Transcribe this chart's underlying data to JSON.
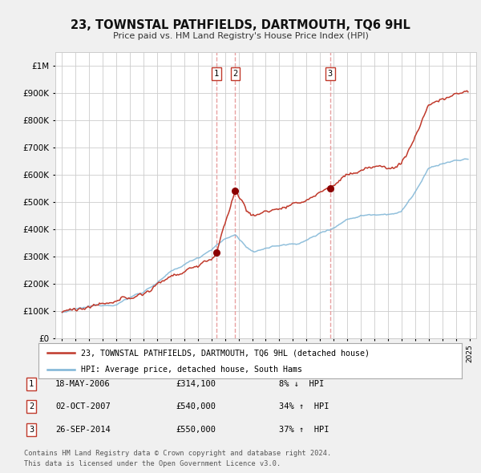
{
  "title": "23, TOWNSTAL PATHFIELDS, DARTMOUTH, TQ6 9HL",
  "subtitle": "Price paid vs. HM Land Registry's House Price Index (HPI)",
  "legend_line1": "23, TOWNSTAL PATHFIELDS, DARTMOUTH, TQ6 9HL (detached house)",
  "legend_line2": "HPI: Average price, detached house, South Hams",
  "transactions": [
    {
      "num": 1,
      "date": "18-MAY-2006",
      "price": 314100,
      "pct": "8%",
      "dir": "↓",
      "year": 2006.38
    },
    {
      "num": 2,
      "date": "02-OCT-2007",
      "price": 540000,
      "pct": "34%",
      "dir": "↑",
      "year": 2007.75
    },
    {
      "num": 3,
      "date": "26-SEP-2014",
      "price": 550000,
      "pct": "37%",
      "dir": "↑",
      "year": 2014.74
    }
  ],
  "footnote1": "Contains HM Land Registry data © Crown copyright and database right 2024.",
  "footnote2": "This data is licensed under the Open Government Licence v3.0.",
  "red_color": "#c0392b",
  "blue_color": "#7eb5d6",
  "vline_color": "#e8a0a0",
  "background_color": "#f0f0f0",
  "plot_bg": "#ffffff",
  "grid_color": "#cccccc",
  "ylim": [
    0,
    1050000
  ],
  "yticks": [
    0,
    100000,
    200000,
    300000,
    400000,
    500000,
    600000,
    700000,
    800000,
    900000,
    1000000
  ],
  "xlim_start": 1994.5,
  "xlim_end": 2025.5
}
